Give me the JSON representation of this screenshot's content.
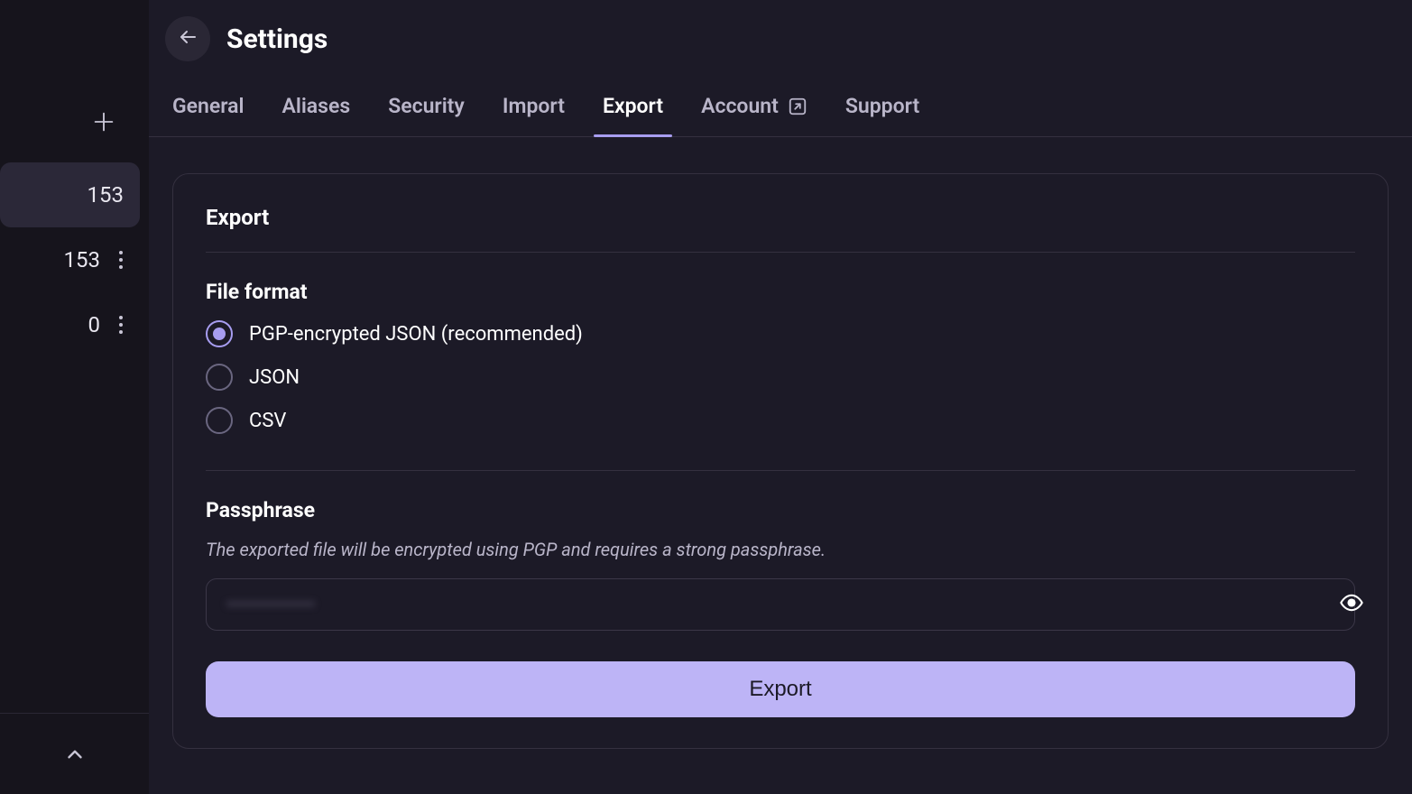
{
  "colors": {
    "app_bg": "#16141c",
    "main_bg": "#1c1a27",
    "panel_border": "#34303f",
    "text_primary": "#ffffff",
    "text_muted": "#b9b5c9",
    "accent": "#a79df0",
    "button_bg": "#bdb4f6",
    "button_text": "#1c1a27",
    "sidebar_active_bg": "#2b2838"
  },
  "sidebar": {
    "items": [
      {
        "count": "153",
        "active": true,
        "has_menu": false
      },
      {
        "count": "153",
        "active": false,
        "has_menu": true
      },
      {
        "count": "0",
        "active": false,
        "has_menu": true
      }
    ]
  },
  "header": {
    "title": "Settings"
  },
  "tabs": [
    {
      "label": "General",
      "active": false,
      "external": false
    },
    {
      "label": "Aliases",
      "active": false,
      "external": false
    },
    {
      "label": "Security",
      "active": false,
      "external": false
    },
    {
      "label": "Import",
      "active": false,
      "external": false
    },
    {
      "label": "Export",
      "active": true,
      "external": false
    },
    {
      "label": "Account",
      "active": false,
      "external": true
    },
    {
      "label": "Support",
      "active": false,
      "external": false
    }
  ],
  "panel": {
    "title": "Export",
    "file_format": {
      "title": "File format",
      "options": [
        {
          "label": "PGP-encrypted JSON (recommended)",
          "selected": true
        },
        {
          "label": "JSON",
          "selected": false
        },
        {
          "label": "CSV",
          "selected": false
        }
      ]
    },
    "passphrase": {
      "title": "Passphrase",
      "description": "The exported file will be encrypted using PGP and requires a strong passphrase.",
      "value": "",
      "placeholder": "••••••••••••••"
    },
    "export_button_label": "Export"
  }
}
